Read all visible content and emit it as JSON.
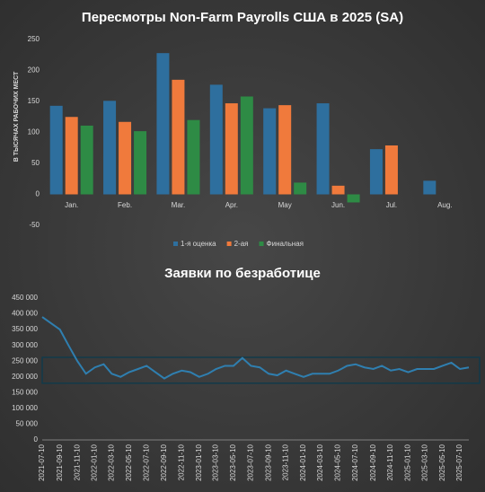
{
  "chart_data": [
    {
      "type": "bar",
      "title": "Пересмотры Non-Farm Payrolls США в 2025 (SA)",
      "y_label": "В ТЫСЯЧАХ РАБОЧИХ МЕСТ",
      "categories": [
        "Jan.",
        "Feb.",
        "Mar.",
        "Apr.",
        "May",
        "Jun.",
        "Jul.",
        "Aug."
      ],
      "series": [
        {
          "name": "1-я оценка",
          "color": "#2e6f9e",
          "values": [
            143,
            151,
            228,
            177,
            139,
            147,
            73,
            22
          ]
        },
        {
          "name": "2-ая",
          "color": "#f07a3c",
          "values": [
            125,
            117,
            185,
            147,
            144,
            14,
            79,
            null
          ]
        },
        {
          "name": "Финальная",
          "color": "#2e8b45",
          "values": [
            111,
            102,
            120,
            158,
            19,
            -13,
            null,
            null
          ]
        }
      ],
      "ylim": [
        -50,
        250
      ],
      "yticks": [
        -50,
        0,
        50,
        100,
        150,
        200,
        250
      ],
      "legend": "bottom"
    },
    {
      "type": "line",
      "title": "Заявки по безработице",
      "x": [
        "2021-07-10",
        "2021-08-10",
        "2021-09-10",
        "2021-10-10",
        "2021-11-10",
        "2021-12-10",
        "2022-01-10",
        "2022-02-10",
        "2022-03-10",
        "2022-04-10",
        "2022-05-10",
        "2022-06-10",
        "2022-07-10",
        "2022-08-10",
        "2022-09-10",
        "2022-10-10",
        "2022-11-10",
        "2022-12-10",
        "2023-01-10",
        "2023-02-10",
        "2023-03-10",
        "2023-04-10",
        "2023-05-10",
        "2023-06-10",
        "2023-07-10",
        "2023-08-10",
        "2023-09-10",
        "2023-10-10",
        "2023-11-10",
        "2023-12-10",
        "2024-01-10",
        "2024-02-10",
        "2024-03-10",
        "2024-04-10",
        "2024-05-10",
        "2024-06-10",
        "2024-07-10",
        "2024-08-10",
        "2024-09-10",
        "2024-10-10",
        "2024-11-10",
        "2024-12-10",
        "2025-01-10",
        "2025-02-10",
        "2025-03-10",
        "2025-04-10",
        "2025-05-10",
        "2025-06-10",
        "2025-07-10",
        "2025-08-10"
      ],
      "series": [
        {
          "color": "#2f7fb0",
          "values": [
            390000,
            370000,
            350000,
            300000,
            250000,
            210000,
            230000,
            240000,
            210000,
            200000,
            215000,
            225000,
            235000,
            215000,
            195000,
            210000,
            220000,
            215000,
            200000,
            210000,
            225000,
            235000,
            235000,
            260000,
            235000,
            230000,
            210000,
            205000,
            220000,
            210000,
            200000,
            210000,
            210000,
            210000,
            220000,
            235000,
            240000,
            230000,
            225000,
            235000,
            220000,
            225000,
            215000,
            225000,
            225000,
            225000,
            235000,
            245000,
            225000,
            230000
          ]
        }
      ],
      "highlight_range": [
        180000,
        262000
      ],
      "ylim": [
        0,
        450000
      ],
      "yticks": [
        {
          "value": 0,
          "label": "0"
        },
        {
          "value": 50000,
          "label": "50 000"
        },
        {
          "value": 100000,
          "label": "100 000"
        },
        {
          "value": 150000,
          "label": "150 000"
        },
        {
          "value": 200000,
          "label": "200 000"
        },
        {
          "value": 250000,
          "label": "250 000"
        },
        {
          "value": 300000,
          "label": "300 000"
        },
        {
          "value": 350000,
          "label": "350 000"
        },
        {
          "value": 400000,
          "label": "400 000"
        },
        {
          "value": 450000,
          "label": "450 000"
        }
      ]
    }
  ]
}
